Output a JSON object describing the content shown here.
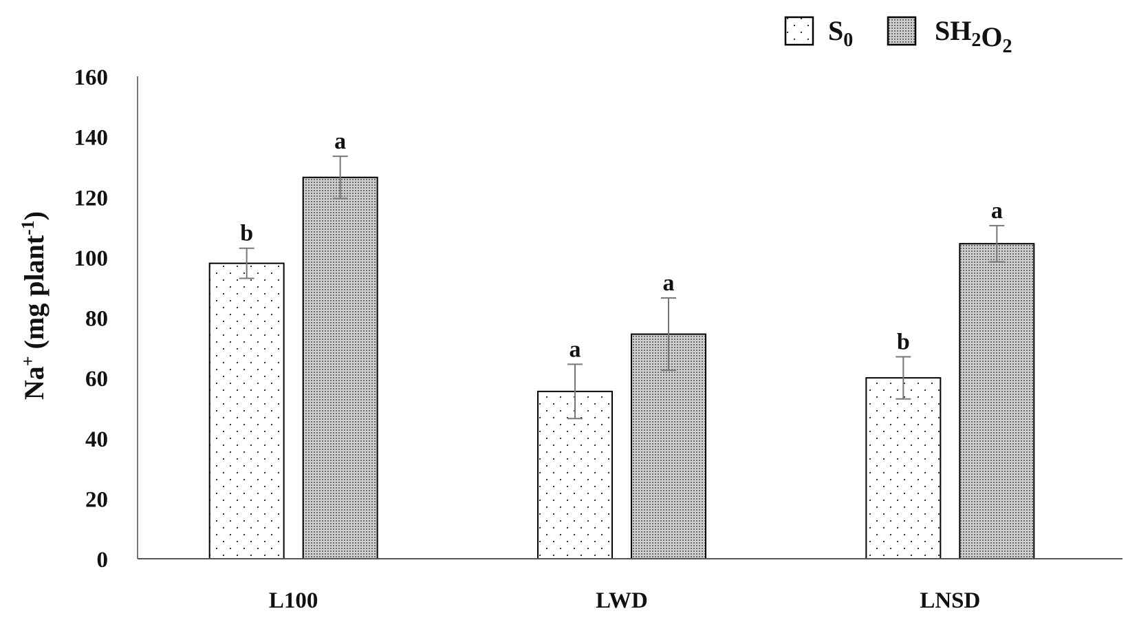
{
  "chart_data": {
    "type": "bar",
    "title": "",
    "categories": [
      "L100",
      "LWD",
      "LNSD"
    ],
    "series": [
      {
        "name": "S0",
        "legend": {
          "base": "S",
          "sub": "0"
        },
        "values": [
          98,
          55.5,
          60
        ],
        "errors": [
          5,
          9,
          7
        ],
        "letters": [
          "b",
          "a",
          "b"
        ],
        "pattern": "sparse-dots"
      },
      {
        "name": "SH2O2",
        "legend": {
          "parts": [
            [
              "S",
              ""
            ],
            [
              "H",
              "2"
            ],
            [
              "O",
              "2"
            ]
          ]
        },
        "values": [
          126.5,
          74.5,
          104.5
        ],
        "errors": [
          7,
          12,
          6
        ],
        "letters": [
          "a",
          "a",
          "a"
        ],
        "pattern": "dense-dots"
      }
    ],
    "xlabel": "",
    "ylabel": "Na+ (mg plant-1)",
    "ylabel_parts": [
      [
        "Na",
        ""
      ],
      [
        "+",
        "sup"
      ],
      [
        " (mg plant",
        ""
      ],
      [
        "-1",
        "sup"
      ],
      [
        ")",
        ""
      ]
    ],
    "ylim": [
      0,
      160
    ],
    "yticks": [
      0,
      20,
      40,
      60,
      80,
      100,
      120,
      140,
      160
    ],
    "legend_position": "top-right",
    "grid": false
  }
}
